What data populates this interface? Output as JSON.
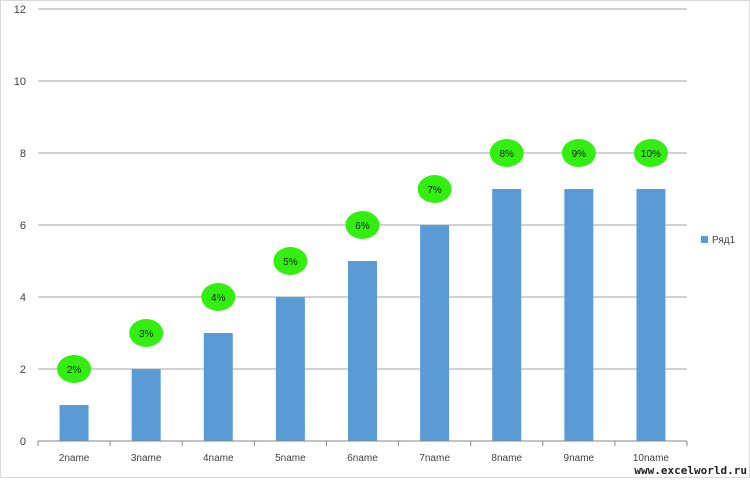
{
  "colors": {
    "bar": "#5b9bd5",
    "label_bubble": "#33ee11",
    "gridline": "#a6a6a6",
    "axis": "#868686",
    "text": "#404040"
  },
  "chart_data": {
    "type": "bar",
    "categories": [
      "2name",
      "3name",
      "4name",
      "5name",
      "6name",
      "7name",
      "8name",
      "9name",
      "10name"
    ],
    "series": [
      {
        "name": "Ряд1",
        "values": [
          1,
          2,
          3,
          4,
          5,
          6,
          7,
          7,
          7
        ],
        "data_labels": [
          "2%",
          "3%",
          "4%",
          "5%",
          "6%",
          "7%",
          "8%",
          "9%",
          "10%"
        ],
        "label_positions": [
          2,
          3,
          4,
          5,
          6,
          7,
          8,
          8,
          8
        ]
      }
    ],
    "title": "",
    "xlabel": "",
    "ylabel": "",
    "ylim": [
      0,
      12
    ],
    "yticks": [
      0,
      2,
      4,
      6,
      8,
      10,
      12
    ],
    "grid": true,
    "legend": "right"
  },
  "watermark": "www.excelworld.ru"
}
